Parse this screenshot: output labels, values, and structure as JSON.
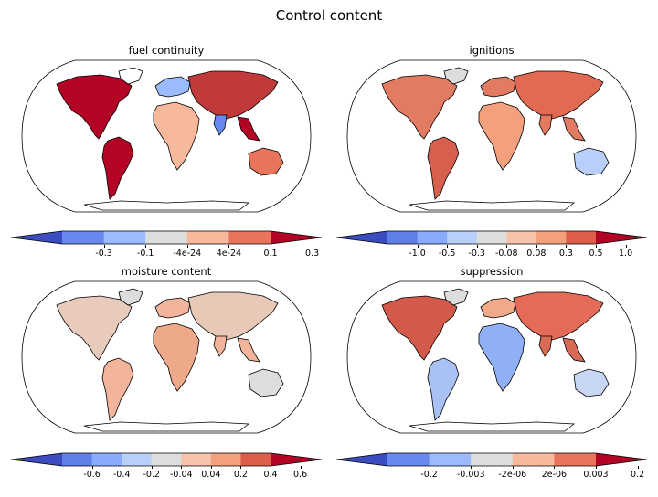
{
  "figure_title": "Control content",
  "panels": [
    {
      "title": "fuel continuity",
      "colorbar": {
        "colors": [
          "#3b4cc0",
          "#6788ee",
          "#9abbff",
          "#dddddd",
          "#f7b89c",
          "#e7745b",
          "#b40426"
        ],
        "ticks": [
          "-0.3",
          "-0.1",
          "-4e-24",
          "4e-24",
          "0.1",
          "0.3"
        ]
      }
    },
    {
      "title": "ignitions",
      "colorbar": {
        "colors": [
          "#3b4cc0",
          "#5f7fe8",
          "#88abfd",
          "#b7cff9",
          "#dddddd",
          "#f5c2aa",
          "#f2a07e",
          "#dd5f4b",
          "#b40426"
        ],
        "ticks": [
          "-1.0",
          "-0.5",
          "-0.3",
          "-0.08",
          "0.08",
          "0.3",
          "0.5",
          "1.0"
        ]
      }
    },
    {
      "title": "moisture content",
      "colorbar": {
        "colors": [
          "#3b4cc0",
          "#5f7fe8",
          "#88abfd",
          "#b7cff9",
          "#dddddd",
          "#f5c2aa",
          "#f2a07e",
          "#dd5f4b",
          "#b40426"
        ],
        "ticks": [
          "-0.6",
          "-0.4",
          "-0.2",
          "-0.04",
          "0.04",
          "0.2",
          "0.4",
          "0.6"
        ]
      }
    },
    {
      "title": "suppression",
      "colorbar": {
        "colors": [
          "#3b4cc0",
          "#6788ee",
          "#9abbff",
          "#dddddd",
          "#f7b89c",
          "#e7745b",
          "#b40426"
        ],
        "ticks": [
          "-0.2",
          "-0.003",
          "-2e-06",
          "2e-06",
          "0.003",
          "0.2"
        ]
      }
    }
  ]
}
